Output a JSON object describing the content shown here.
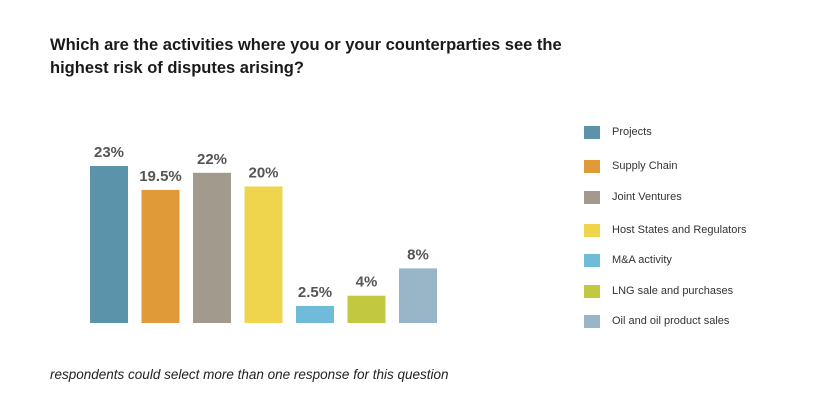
{
  "title_lines": [
    "Which are the activities where you or your counterparties see the",
    "highest risk of disputes arising?"
  ],
  "footnote": "respondents could select more than one response for this question",
  "chart_data": {
    "type": "bar",
    "categories": [
      "Projects",
      "Supply Chain",
      "Joint Ventures",
      "Host States and Regulators",
      "M&A activity",
      "LNG sale and purchases",
      "Oil and oil product sales"
    ],
    "values": [
      23,
      19.5,
      22,
      20,
      2.5,
      4,
      8
    ],
    "value_labels": [
      "23%",
      "19.5%",
      "22%",
      "20%",
      "2.5%",
      "4%",
      "8%"
    ],
    "colors": [
      "#5b93aa",
      "#e09a38",
      "#a29a8d",
      "#efd44d",
      "#70bcd8",
      "#c2c940",
      "#98b6c8"
    ],
    "ylim": [
      0,
      23
    ],
    "grid": false,
    "legend_position": "right"
  }
}
